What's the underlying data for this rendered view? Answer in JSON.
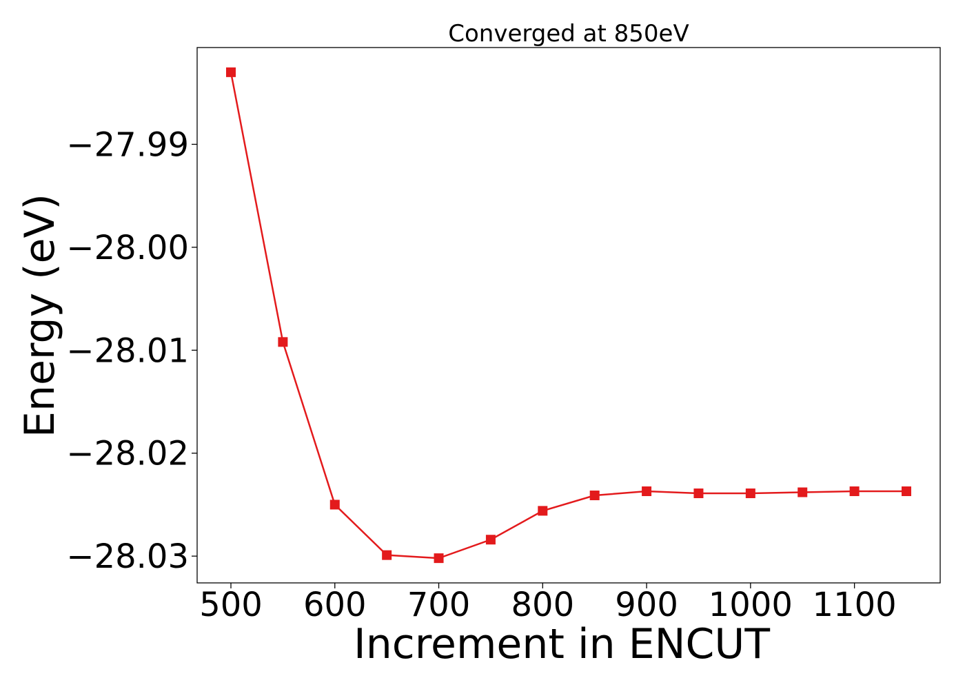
{
  "chart_data": {
    "type": "line",
    "title": "Converged at 850eV",
    "xlabel": "Increment in ENCUT",
    "ylabel": "Energy (eV)",
    "x": [
      500,
      550,
      600,
      650,
      700,
      750,
      800,
      850,
      900,
      950,
      1000,
      1050,
      1100,
      1150
    ],
    "series": [
      {
        "values": [
          -27.983,
          -28.0092,
          -28.025,
          -28.0299,
          -28.0302,
          -28.0284,
          -28.0256,
          -28.0241,
          -28.0237,
          -28.0239,
          -28.0239,
          -28.0238,
          -28.0237,
          -28.0237
        ]
      }
    ],
    "xticks": [
      500,
      600,
      700,
      800,
      900,
      1000,
      1100
    ],
    "xtick_labels": [
      "500",
      "600",
      "700",
      "800",
      "900",
      "1000",
      "1100"
    ],
    "yticks": [
      -27.99,
      -28.0,
      -28.01,
      -28.02,
      -28.03
    ],
    "ytick_labels": [
      "−27.99",
      "−28.00",
      "−28.01",
      "−28.02",
      "−28.03"
    ],
    "xlim": [
      467.5,
      1182.5
    ],
    "ylim": [
      -28.0326,
      -27.9806
    ],
    "line_color": "#e31a1c",
    "marker": "square",
    "grid": false
  }
}
